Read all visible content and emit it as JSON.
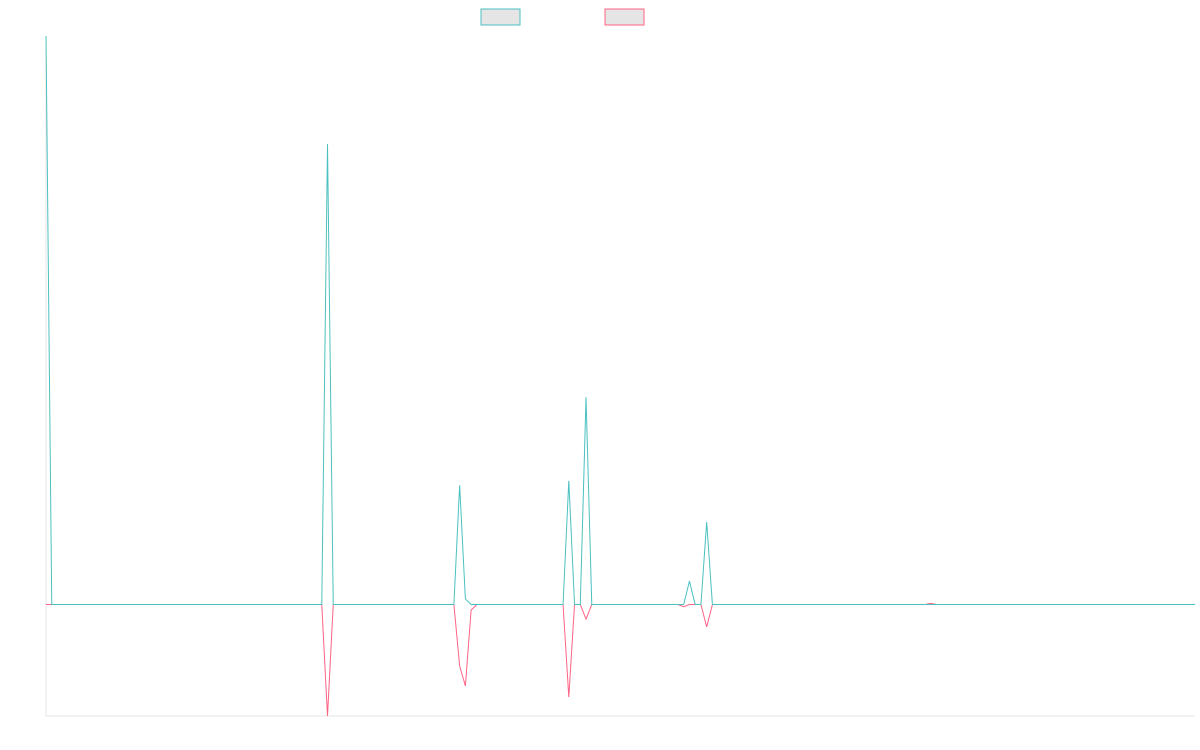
{
  "chart_data": {
    "type": "line",
    "title": "",
    "xlabel": "",
    "ylabel": "",
    "x": [
      0,
      1,
      48,
      49,
      50,
      71,
      72,
      73,
      74,
      75,
      90,
      91,
      92,
      93,
      94,
      95,
      96,
      110,
      111,
      112,
      113,
      114,
      115,
      116,
      117,
      153,
      154,
      155,
      200
    ],
    "xlim": [
      0,
      200
    ],
    "ylim": [
      -1.0,
      5.1
    ],
    "legend_position": "top-center",
    "grid": false,
    "series": [
      {
        "color": "#4BC0C0",
        "fill": "#E5E5E5",
        "values": [
          5.1,
          0,
          0,
          4.13,
          0,
          0,
          1.07,
          0.05,
          0,
          0,
          0,
          1.11,
          0,
          0,
          1.86,
          0,
          0,
          0,
          0,
          0.21,
          0,
          0,
          0.74,
          0,
          0,
          0,
          0,
          0,
          0
        ]
      },
      {
        "color": "#FF6384",
        "fill": "#E5E5E5",
        "values": [
          0,
          0,
          0,
          -1.0,
          0,
          0,
          -0.55,
          -0.73,
          -0.05,
          0,
          0,
          -0.83,
          0,
          0,
          -0.13,
          0,
          0,
          0,
          -0.02,
          0,
          0,
          0,
          -0.2,
          0,
          0,
          0,
          0.01,
          0,
          0
        ]
      }
    ]
  }
}
